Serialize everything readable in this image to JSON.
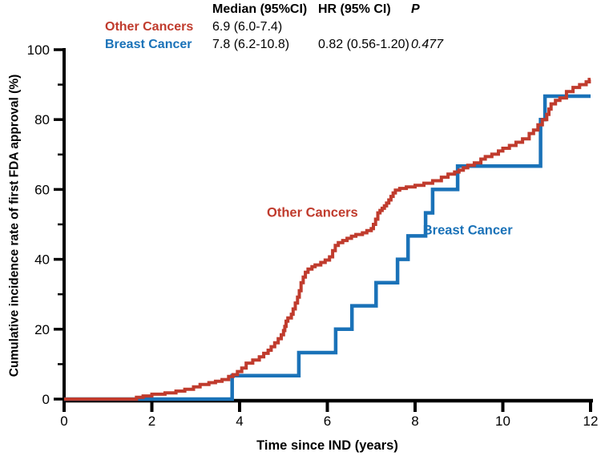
{
  "colors": {
    "other_cancers": "#c03b2d",
    "breast_cancer": "#1a72b8",
    "axis": "#000000",
    "background": "#ffffff"
  },
  "summary_table": {
    "headers": {
      "median": "Median (95%CI)",
      "hr": "HR (95% CI)",
      "p": "P"
    },
    "rows": [
      {
        "label": "Other Cancers",
        "median": "6.9 (6.0-7.4)",
        "hr": "",
        "p": ""
      },
      {
        "label": "Breast Cancer",
        "median": "7.8 (6.2-10.8)",
        "hr": "0.82 (0.56-1.20)",
        "p": "0.477"
      }
    ]
  },
  "chart_data": {
    "type": "line",
    "step": "after",
    "title": "",
    "xlabel": "Time since IND (years)",
    "ylabel": "Cumulative incidence rate of first FDA approval (%)",
    "xlim": [
      0,
      12
    ],
    "ylim": [
      0,
      100
    ],
    "x_ticks": [
      0,
      2,
      4,
      6,
      8,
      10,
      12
    ],
    "y_ticks": [
      0,
      20,
      40,
      60,
      80,
      100
    ],
    "y_minor_ticks": [
      10,
      30,
      50,
      70,
      90
    ],
    "grid": false,
    "legend_position": "labels-on-plot",
    "series": [
      {
        "name": "Breast Cancer",
        "color": "#1a72b8",
        "stroke_width": 4.5,
        "label": {
          "text": "Breast Cancer",
          "x": 9.2,
          "y": 48.5
        },
        "points": [
          [
            0,
            0
          ],
          [
            3.83,
            6.7
          ],
          [
            5.35,
            13.3
          ],
          [
            6.19,
            20.0
          ],
          [
            6.56,
            26.7
          ],
          [
            7.11,
            33.3
          ],
          [
            7.6,
            40.0
          ],
          [
            7.84,
            46.7
          ],
          [
            8.24,
            53.3
          ],
          [
            8.4,
            60.0
          ],
          [
            8.97,
            66.7
          ],
          [
            10.86,
            80.0
          ],
          [
            10.96,
            86.7
          ],
          [
            12,
            86.7
          ]
        ]
      },
      {
        "name": "Other Cancers",
        "color": "#c03b2d",
        "stroke_width": 4,
        "label": {
          "text": "Other Cancers",
          "x": 5.66,
          "y": 53.5
        },
        "points": [
          [
            0,
            0
          ],
          [
            1.65,
            0.5
          ],
          [
            1.8,
            0.9
          ],
          [
            2.0,
            1.4
          ],
          [
            2.3,
            1.8
          ],
          [
            2.55,
            2.3
          ],
          [
            2.75,
            2.8
          ],
          [
            2.95,
            3.5
          ],
          [
            3.1,
            4.2
          ],
          [
            3.3,
            4.7
          ],
          [
            3.45,
            5.1
          ],
          [
            3.6,
            5.6
          ],
          [
            3.75,
            6.5
          ],
          [
            3.85,
            7.0
          ],
          [
            3.95,
            7.9
          ],
          [
            4.05,
            8.9
          ],
          [
            4.15,
            10.3
          ],
          [
            4.3,
            11.2
          ],
          [
            4.45,
            12.1
          ],
          [
            4.55,
            13.1
          ],
          [
            4.65,
            14.0
          ],
          [
            4.72,
            15.0
          ],
          [
            4.8,
            16.1
          ],
          [
            4.88,
            17.3
          ],
          [
            4.95,
            18.4
          ],
          [
            5.0,
            19.6
          ],
          [
            5.03,
            20.8
          ],
          [
            5.06,
            22.3
          ],
          [
            5.1,
            23.2
          ],
          [
            5.18,
            24.3
          ],
          [
            5.22,
            25.8
          ],
          [
            5.27,
            27.5
          ],
          [
            5.32,
            29.2
          ],
          [
            5.36,
            31.0
          ],
          [
            5.4,
            33.3
          ],
          [
            5.45,
            34.9
          ],
          [
            5.5,
            36.3
          ],
          [
            5.56,
            37.2
          ],
          [
            5.65,
            37.9
          ],
          [
            5.72,
            38.4
          ],
          [
            5.85,
            39.1
          ],
          [
            5.95,
            39.8
          ],
          [
            6.05,
            40.7
          ],
          [
            6.12,
            42.5
          ],
          [
            6.18,
            44.0
          ],
          [
            6.25,
            44.8
          ],
          [
            6.35,
            45.4
          ],
          [
            6.45,
            46.0
          ],
          [
            6.55,
            46.6
          ],
          [
            6.65,
            47.1
          ],
          [
            6.8,
            47.6
          ],
          [
            6.9,
            48.2
          ],
          [
            7.0,
            48.8
          ],
          [
            7.05,
            50.0
          ],
          [
            7.1,
            51.5
          ],
          [
            7.15,
            53.3
          ],
          [
            7.2,
            54.0
          ],
          [
            7.25,
            54.6
          ],
          [
            7.3,
            55.3
          ],
          [
            7.35,
            56.1
          ],
          [
            7.4,
            57.0
          ],
          [
            7.45,
            58.0
          ],
          [
            7.5,
            59.0
          ],
          [
            7.55,
            59.8
          ],
          [
            7.65,
            60.3
          ],
          [
            7.8,
            60.7
          ],
          [
            8.0,
            61.2
          ],
          [
            8.2,
            61.8
          ],
          [
            8.4,
            62.5
          ],
          [
            8.6,
            63.5
          ],
          [
            8.75,
            64.4
          ],
          [
            8.9,
            65.0
          ],
          [
            9.0,
            65.5
          ],
          [
            9.1,
            66.2
          ],
          [
            9.2,
            66.9
          ],
          [
            9.35,
            67.6
          ],
          [
            9.5,
            68.7
          ],
          [
            9.6,
            69.4
          ],
          [
            9.75,
            70.1
          ],
          [
            9.9,
            71.0
          ],
          [
            10.0,
            71.8
          ],
          [
            10.15,
            72.6
          ],
          [
            10.3,
            73.5
          ],
          [
            10.45,
            74.5
          ],
          [
            10.6,
            76.0
          ],
          [
            10.7,
            77.0
          ],
          [
            10.8,
            78.5
          ],
          [
            10.9,
            80.0
          ],
          [
            11.0,
            81.5
          ],
          [
            11.05,
            83.0
          ],
          [
            11.1,
            84.5
          ],
          [
            11.2,
            85.5
          ],
          [
            11.3,
            86.2
          ],
          [
            11.45,
            88.0
          ],
          [
            11.6,
            89.2
          ],
          [
            11.75,
            90.0
          ],
          [
            11.9,
            90.8
          ],
          [
            11.97,
            91.5
          ]
        ]
      }
    ]
  }
}
